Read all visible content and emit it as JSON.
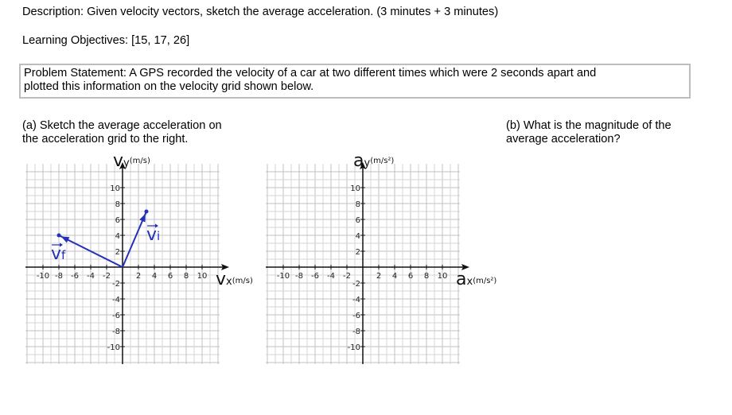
{
  "description": "Description:  Given velocity vectors, sketch the average acceleration.  (3 minutes + 3 minutes)",
  "learning_objectives": "Learning Objectives:  [15, 17, 26]",
  "problem_statement": {
    "line1": "Problem Statement:  A GPS recorded the velocity of a car at two different times which were 2 seconds apart and",
    "line2": "plotted this information on the velocity grid shown below."
  },
  "part_a": {
    "line1": "(a)  Sketch the average acceleration on",
    "line2": "the acceleration grid to the right."
  },
  "part_b": {
    "line1": "(b)  What is the magnitude of the",
    "line2": "average acceleration?"
  },
  "vector_color": "#2330b8",
  "velocity_grid": {
    "x_axis_symbol": "v",
    "x_axis_sub": "x",
    "x_axis_unit": "(m/s)",
    "y_axis_symbol": "v",
    "y_axis_sub": "y",
    "y_axis_unit": "(m/s)",
    "ticks": [
      -10,
      -8,
      -6,
      -4,
      -2,
      2,
      4,
      6,
      8,
      10
    ],
    "range": [
      -12,
      12
    ],
    "vectors": [
      {
        "label": "v",
        "sub": "i",
        "x": 3,
        "y": 7
      },
      {
        "label": "v",
        "sub": "f",
        "x": -8,
        "y": 4
      }
    ]
  },
  "acceleration_grid": {
    "x_axis_symbol": "a",
    "x_axis_sub": "x",
    "x_axis_unit": "(m/s²)",
    "y_axis_symbol": "a",
    "y_axis_sub": "y",
    "y_axis_unit": "(m/s²)",
    "ticks": [
      -10,
      -8,
      -6,
      -4,
      -2,
      2,
      4,
      6,
      8,
      10
    ],
    "range": [
      -12,
      12
    ]
  }
}
